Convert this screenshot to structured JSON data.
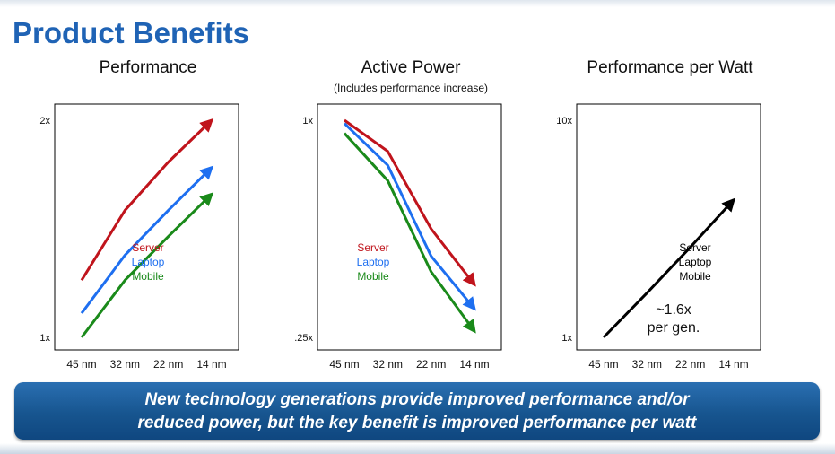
{
  "slide": {
    "title": "Product Benefits",
    "banner": {
      "line1": "New technology generations provide improved performance and/or",
      "line2": "reduced power, but the key benefit is improved performance per watt"
    }
  },
  "colors": {
    "server": "#c0141c",
    "laptop": "#1e6ff0",
    "mobile": "#1a8a1a",
    "combined": "#000000",
    "banner": "#17558f",
    "title": "#1f63b5"
  },
  "chart_data": [
    {
      "type": "line",
      "title": "Performance",
      "subtitle": "",
      "categories": [
        "45 nm",
        "32 nm",
        "22 nm",
        "14 nm"
      ],
      "yscale": "log",
      "ylim": [
        1,
        2
      ],
      "yticks": [
        {
          "label": "1x",
          "value": 1
        },
        {
          "label": "2x",
          "value": 2
        }
      ],
      "series": [
        {
          "name": "Server",
          "color": "#c0141c",
          "values": [
            1.2,
            1.5,
            1.75,
            2.0
          ]
        },
        {
          "name": "Laptop",
          "color": "#1e6ff0",
          "values": [
            1.08,
            1.3,
            1.5,
            1.72
          ]
        },
        {
          "name": "Mobile",
          "color": "#1a8a1a",
          "values": [
            1.0,
            1.2,
            1.38,
            1.58
          ]
        }
      ],
      "legend": {
        "position": "center-right"
      },
      "annotation": ""
    },
    {
      "type": "line",
      "title": "Active Power",
      "subtitle": "(Includes performance increase)",
      "categories": [
        "45 nm",
        "32 nm",
        "22 nm",
        "14 nm"
      ],
      "yscale": "log",
      "ylim": [
        0.25,
        1
      ],
      "yticks": [
        {
          "label": "1x",
          "value": 1
        },
        {
          "label": ".25x",
          "value": 0.25
        }
      ],
      "series": [
        {
          "name": "Server",
          "color": "#c0141c",
          "values": [
            1.0,
            0.82,
            0.5,
            0.35
          ]
        },
        {
          "name": "Laptop",
          "color": "#1e6ff0",
          "values": [
            0.98,
            0.75,
            0.42,
            0.3
          ]
        },
        {
          "name": "Mobile",
          "color": "#1a8a1a",
          "values": [
            0.92,
            0.68,
            0.38,
            0.26
          ]
        }
      ],
      "legend": {
        "position": "center-left"
      },
      "annotation": ""
    },
    {
      "type": "line",
      "title": "Performance per Watt",
      "subtitle": "",
      "categories": [
        "45 nm",
        "32 nm",
        "22 nm",
        "14 nm"
      ],
      "yscale": "log",
      "ylim": [
        1,
        10
      ],
      "yticks": [
        {
          "label": "1x",
          "value": 1
        },
        {
          "label": "10x",
          "value": 10
        }
      ],
      "series": [
        {
          "name": "Server\nLaptop\nMobile",
          "color": "#000000",
          "values": [
            1.0,
            1.6,
            2.6,
            4.3
          ]
        }
      ],
      "legend": {
        "position": "center-right"
      },
      "annotation": "~1.6x\nper gen."
    }
  ]
}
